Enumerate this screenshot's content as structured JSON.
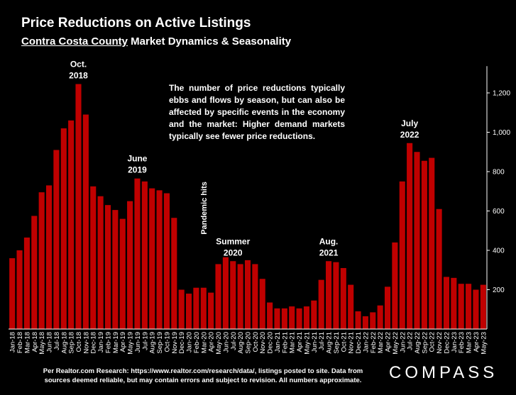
{
  "header": {
    "title": "Price Reductions on Active Listings",
    "subtitle_underlined": "Contra Costa County",
    "subtitle_rest": " Market Dynamics & Seasonality"
  },
  "note": "The number of price reductions typically ebbs and flows by season, but can also be affected by specific events in the economy and the market:  Higher demand markets typically see fewer price reductions.",
  "footer": {
    "line1": "Per Realtor.com Research:  https://www.realtor.com/research/data/, listings posted to site. Data from",
    "line2": "sources deemed reliable, but may contain errors and subject to revision. All numbers approximate.",
    "logo": "COMPASS"
  },
  "colors": {
    "bar": "#c00000",
    "background": "#000000",
    "text": "#ffffff"
  },
  "chart_data": {
    "type": "bar",
    "ylim": [
      0,
      1300
    ],
    "yticks": [
      {
        "v": 200,
        "label": "200"
      },
      {
        "v": 400,
        "label": "400"
      },
      {
        "v": 600,
        "label": "600"
      },
      {
        "v": 800,
        "label": "800"
      },
      {
        "v": 1000,
        "label": "1,000"
      },
      {
        "v": 1200,
        "label": "1,200"
      }
    ],
    "categories": [
      "Jan-18",
      "Feb-18",
      "Mar-18",
      "Apr-18",
      "May-18",
      "Jun-18",
      "Jul-18",
      "Aug-18",
      "Sep-18",
      "Oct-18",
      "Nov-18",
      "Dec-18",
      "Jan-19",
      "Feb-19",
      "Mar-19",
      "Apr-19",
      "May-19",
      "Jun-19",
      "Jul-19",
      "Aug-19",
      "Sep-19",
      "Oct-19",
      "Nov-19",
      "Dec-19",
      "Jan-20",
      "Feb-20",
      "Mar-20",
      "Apr-20",
      "May-20",
      "Jun-20",
      "Jul-20",
      "Aug-20",
      "Sep-20",
      "Oct-20",
      "Nov-20",
      "Dec-20",
      "Jan-21",
      "Feb-21",
      "Mar-21",
      "Apr-21",
      "May-21",
      "Jun-21",
      "Jul-21",
      "Aug-21",
      "Sep-21",
      "Oct-21",
      "Nov-21",
      "Dec-21",
      "Jan-22",
      "Feb-22",
      "Mar-22",
      "Apr-22",
      "May-22",
      "Jun-22",
      "Jul-22",
      "Aug-22",
      "Sep-22",
      "Oct-22",
      "Nov-22",
      "Dec-22",
      "Jan-23",
      "Feb-23",
      "Mar-23",
      "Apr-23",
      "May-23"
    ],
    "values": [
      360,
      400,
      465,
      575,
      695,
      730,
      910,
      1020,
      1060,
      1245,
      1090,
      725,
      675,
      630,
      605,
      560,
      650,
      765,
      750,
      715,
      705,
      690,
      565,
      200,
      180,
      210,
      210,
      185,
      330,
      365,
      345,
      330,
      350,
      330,
      255,
      135,
      105,
      105,
      115,
      105,
      115,
      145,
      250,
      345,
      340,
      310,
      225,
      90,
      65,
      85,
      120,
      215,
      440,
      750,
      945,
      900,
      855,
      870,
      610,
      265,
      260,
      230,
      230,
      200,
      225
    ],
    "annotations": [
      {
        "label": [
          "Oct.",
          "2018"
        ],
        "index": 9
      },
      {
        "label": [
          "June",
          "2019"
        ],
        "index": 17
      },
      {
        "label": [
          "Summer",
          "2020"
        ],
        "index": 30
      },
      {
        "label": [
          "Aug.",
          "2021"
        ],
        "index": 43
      },
      {
        "label": [
          "July",
          "2022"
        ],
        "index": 54
      }
    ],
    "rotated_annotation": {
      "label": "Pandemic hits",
      "index": 26
    }
  }
}
